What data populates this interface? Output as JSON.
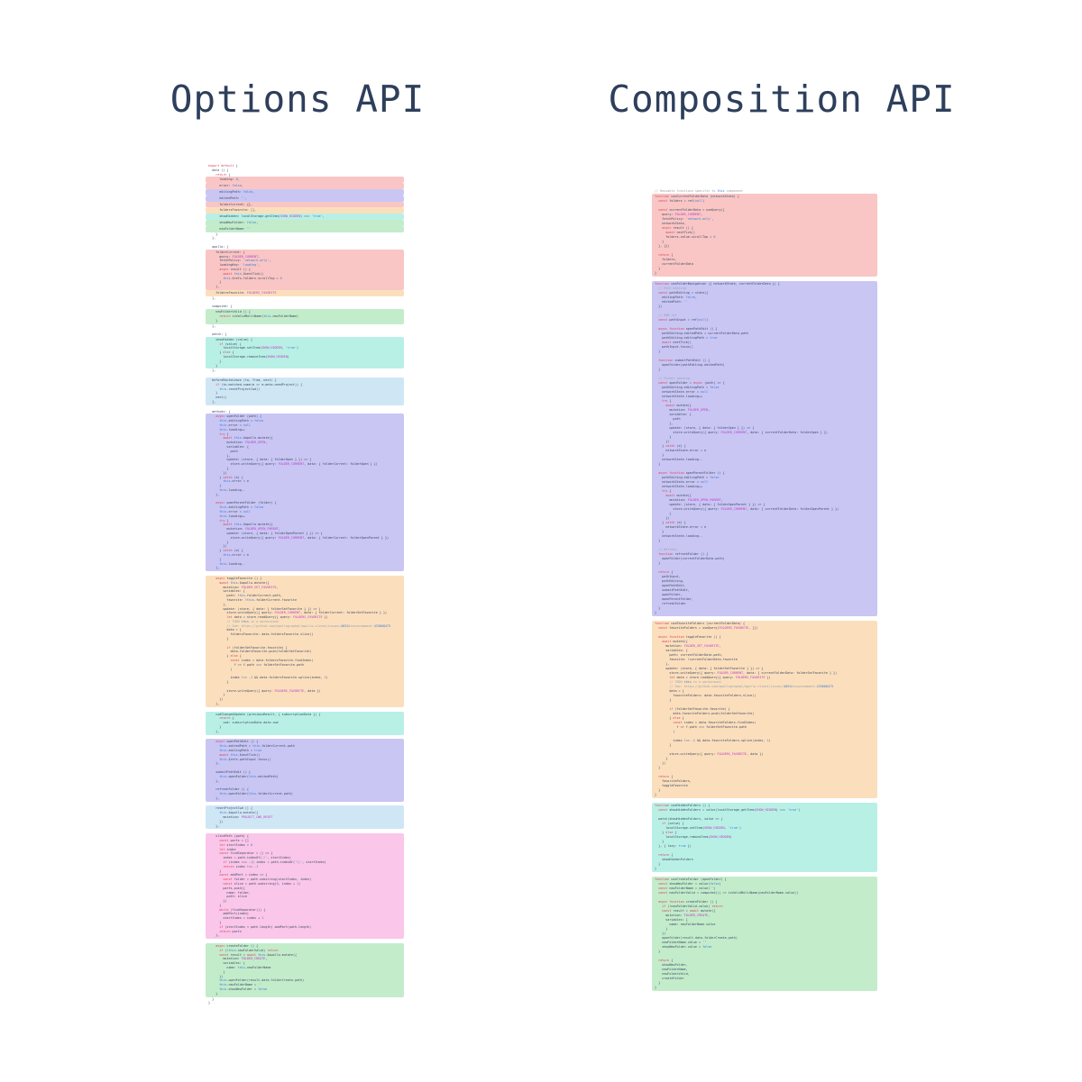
{
  "titles": {
    "left": "Options API",
    "right": "Composition API"
  },
  "palette": {
    "salmon": "#f9c6c5",
    "purple": "#c9c6f4",
    "orange": "#fbdfbd",
    "cyan": "#b9f0e6",
    "blue": "#cfe7f5",
    "pink": "#fac6e9",
    "green": "#c3eccb",
    "title_color": "#2e3f5c"
  },
  "columns": [
    {
      "id": "options",
      "segments": [
        {
          "bg": null,
          "code": "export default {\n  data () {\n    return {"
        },
        {
          "bg": "salmon",
          "code": "      loading: 0,"
        },
        {
          "bg": "salmon",
          "code": "      error: false,"
        },
        {
          "bg": "purple",
          "code": "      editingPath: false,"
        },
        {
          "bg": "purple",
          "code": "      editedPath: '',"
        },
        {
          "bg": "salmon",
          "code": "      folderCurrent: {},"
        },
        {
          "bg": "orange",
          "code": "      foldersFavorite: [],"
        },
        {
          "bg": "cyan",
          "code": "      showHidden: localStorage.getItem(SHOW_HIDDEN) === 'true',"
        },
        {
          "bg": "green",
          "code": "      showNewFolder: false,"
        },
        {
          "bg": "green",
          "code": "      newFolderName: ''"
        },
        {
          "bg": null,
          "code": "    }\n  },\n\n  apollo: {"
        },
        {
          "bg": "salmon",
          "code": "    folderCurrent: {\n      query: FOLDER_CURRENT,\n      fetchPolicy: 'network-only',\n      loadingKey: 'loading',\n      async result () {\n        await this.$nextTick()\n        this.$refs.folders.scrollTop = 0\n      }\n    },"
        },
        {
          "bg": "orange",
          "code": "    foldersFavorite: FOLDERS_FAVORITE"
        },
        {
          "bg": null,
          "code": "  },\n\n  computed: {"
        },
        {
          "bg": "green",
          "code": "    newFolderValid () {\n      return isValidMultiName(this.newFolderName)\n    }"
        },
        {
          "bg": null,
          "code": "  },\n\n  watch: {"
        },
        {
          "bg": "cyan",
          "code": "    showHidden (value) {\n      if (value) {\n        localStorage.setItem(SHOW_HIDDEN, 'true')\n      } else {\n        localStorage.removeItem(SHOW_HIDDEN)\n      }\n    }"
        },
        {
          "bg": null,
          "code": "  },"
        },
        {
          "bg": null,
          "code": " "
        },
        {
          "bg": "blue",
          "code": "  beforeRouteLeave (to, from, next) {\n    if (to.matched.some(m => m.meta.needProject)) {\n      this.resetProjectCwd()\n    }\n    next()\n  },"
        },
        {
          "bg": null,
          "code": "\n  methods: {"
        },
        {
          "bg": "purple",
          "code": "    async openFolder (path) {\n      this.editingPath = false\n      this.error = null\n      this.loading++\n      try {\n        await this.$apollo.mutate({\n          mutation: FOLDER_OPEN,\n          variables: {\n            path\n          },\n          update: (store, { data: { folderOpen } }) => {\n            store.writeQuery({ query: FOLDER_CURRENT, data: { folderCurrent: folderOpen } })\n          }\n        })\n      } catch (e) {\n        this.error = e\n      }\n      this.loading--\n    },\n\n    async openParentFolder (folder) {\n      this.editingPath = false\n      this.error = null\n      this.loading++\n      try {\n        await this.$apollo.mutate({\n          mutation: FOLDER_OPEN_PARENT,\n          update: (store, { data: { folderOpenParent } }) => {\n            store.writeQuery({ query: FOLDER_CURRENT, data: { folderCurrent: folderOpenParent } })\n          }\n        })\n      } catch (e) {\n        this.error = e\n      }\n      this.loading--\n    },"
        },
        {
          "bg": null,
          "code": " "
        },
        {
          "bg": "orange",
          "code": "    async toggleFavorite () {\n      await this.$apollo.mutate({\n        mutation: FOLDER_SET_FAVORITE,\n        variables: {\n          path: this.folderCurrent.path,\n          favorite: !this.folderCurrent.favorite\n        },\n        update: (store, { data: { folderSetFavorite } }) => {\n          store.writeQuery({ query: FOLDER_CURRENT, data: { folderCurrent: folderSetFavorite } })\n          let data = store.readQuery({ query: FOLDERS_FAVORITE })\n          // TODO this is a workaround\n          // See: https://github.com/apollographql/apollo-client/issues/4031#issuecomment-433668473\n          data = {\n            foldersFavorite: data.foldersFavorite.slice()\n          }\n\n          if (folderSetFavorite.favorite) {\n            data.foldersFavorite.push(folderSetFavorite)\n          } else {\n            const index = data.foldersFavorite.findIndex(\n              f => f.path === folderSetFavorite.path\n            )\n\n            index !== -1 && data.foldersFavorite.splice(index, 1)\n          }\n\n          store.writeQuery({ query: FOLDERS_FAVORITE, data })\n        }\n      })\n    },"
        },
        {
          "bg": null,
          "code": " "
        },
        {
          "bg": "cyan",
          "code": "    cwdChangedUpdate (previousResult, { subscriptionData }) {\n      return {\n        cwd: subscriptionData.data.cwd\n      }\n    },"
        },
        {
          "bg": null,
          "code": " "
        },
        {
          "bg": "purple",
          "code": "    async openPathEdit () {\n      this.editedPath = this.folderCurrent.path\n      this.editingPath = true\n      await this.$nextTick()\n      this.$refs.pathInput.focus()\n    },\n\n    submitPathEdit () {\n      this.openFolder(this.editedPath)\n    },\n\n    refreshFolder () {\n      this.openFolder(this.folderCurrent.path)\n    },"
        },
        {
          "bg": null,
          "code": " "
        },
        {
          "bg": "blue",
          "code": "    resetProjectCwd () {\n      this.$apollo.mutate({\n        mutation: PROJECT_CWD_RESET\n      })\n    },"
        },
        {
          "bg": null,
          "code": " "
        },
        {
          "bg": "pink",
          "code": "    slicePath (path) {\n      const parts = []\n      let startIndex = 0\n      let index\n      const findSeparator = () => {\n        index = path.indexOf('/', startIndex)\n        if (index === -1) index = path.indexOf('\\\\', startIndex)\n        return index !== -1\n      }\n      const addPart = index => {\n        const folder = path.substring(startIndex, index)\n        const slice = path.substring(0, index + 1)\n        parts.push({\n          name: folder,\n          path: slice\n        })\n      }\n      while (findSeparator()) {\n        addPart(index)\n        startIndex = index + 1\n      }\n      if (startIndex < path.length) addPart(path.length)\n      return parts\n    },"
        },
        {
          "bg": null,
          "code": " "
        },
        {
          "bg": "green",
          "code": "    async createFolder () {\n      if (!this.newFolderValid) return\n      const result = await this.$apollo.mutate({\n        mutation: FOLDER_CREATE,\n        variables: {\n          name: this.newFolderName\n        }\n      })\n      this.openFolder(result.data.folderCreate.path)\n      this.newFolderName = ''\n      this.showNewFolder = false\n    }"
        },
        {
          "bg": null,
          "code": "  }\n}"
        }
      ]
    },
    {
      "id": "composition",
      "segments": [
        {
          "bg": null,
          "code": "// Reusable functions specific to this component"
        },
        {
          "bg": "salmon",
          "code": "function useCurrentFolderData (networkState) {\n  const folders = ref(null)\n\n  const currentFolderData = useQuery({\n    query: FOLDER_CURRENT,\n    fetchPolicy: 'network-only',\n    networkState,\n    async result () {\n      await nextTick()\n      folders.value.scrollTop = 0\n    }\n  }, {})\n\n  return {\n    folders,\n    currentFolderData\n  }\n}"
        },
        {
          "bg": null,
          "code": " "
        },
        {
          "bg": "purple",
          "code": "function useFolderNavigation ({ networkState, currentFolderData }) {\n  // Path editing\n  const pathEditing = state({\n    editingPath: false,\n    editedPath: ''\n  })\n\n  // DOM ref\n  const pathInput = ref(null)\n\n  async function openPathEdit () {\n    pathEditing.editedPath = currentFolderData.path\n    pathEditing.editingPath = true\n    await nextTick()\n    pathInput.focus()\n  }\n\n  function submitPathEdit () {\n    openFolder(pathEditing.editedPath)\n  }\n\n  // Folder opening\n  const openFolder = async (path) => {\n    pathEditing.editingPath = false\n    networkState.error = null\n    networkState.loading++\n    try {\n      await mutate({\n        mutation: FOLDER_OPEN,\n        variables: {\n          path\n        },\n        update: (store, { data: { folderOpen } }) => {\n          store.writeQuery({ query: FOLDER_CURRENT, data: { currentFolderData: folderOpen } })\n        }\n      })\n    } catch (e) {\n      networkState.error = e\n    }\n    networkState.loading--\n  }\n\n  async function openParentFolder () {\n    pathEditing.editingPath = false\n    networkState.error = null\n    networkState.loading++\n    try {\n      await mutate({\n        mutation: FOLDER_OPEN_PARENT,\n        update: (store, { data: { folderOpenParent } }) => {\n          store.writeQuery({ query: FOLDER_CURRENT, data: { currentFolderData: folderOpenParent } })\n        }\n      })\n    } catch (e) {\n      networkState.error = e\n    }\n    networkState.loading--\n  }\n\n  // Refresh\n  function refreshFolder () {\n    openFolder(currentFolderData.path)\n  }\n\n  return {\n    pathInput,\n    pathEditing,\n    openPathEdit,\n    submitPathEdit,\n    openFolder,\n    openParentFolder,\n    refreshFolder\n  }\n}"
        },
        {
          "bg": null,
          "code": " "
        },
        {
          "bg": "orange",
          "code": "function useFavoriteFolders (currentFolderData) {\n  const favoriteFolders = useQuery(FOLDERS_FAVORITE, [])\n\n  async function toggleFavorite () {\n    await mutate({\n      mutation: FOLDER_SET_FAVORITE,\n      variables: {\n        path: currentFolderData.path,\n        favorite: !currentFolderData.favorite\n      },\n      update: (store, { data: { folderSetFavorite } }) => {\n        store.writeQuery({ query: FOLDER_CURRENT, data: { currentFolderData: folderSetFavorite } })\n        let data = store.readQuery({ query: FOLDERS_FAVORITE })\n        // TODO this is a workaround\n        // See: https://github.com/apollographql/apollo-client/issues/4031#issuecomment-433668473\n        data = {\n          favoriteFolders: data.favoriteFolders.slice()\n        }\n\n        if (folderSetFavorite.favorite) {\n          data.favoriteFolders.push(folderSetFavorite)\n        } else {\n          const index = data.favoriteFolders.findIndex(\n            f => f.path === folderSetFavorite.path\n          )\n\n          index !== -1 && data.favoriteFolders.splice(index, 1)\n        }\n\n        store.writeQuery({ query: FOLDERS_FAVORITE, data })\n      }\n    })\n  }\n\n  return {\n    favoriteFolders,\n    toggleFavorite\n  }\n}"
        },
        {
          "bg": null,
          "code": " "
        },
        {
          "bg": "cyan",
          "code": "function useHiddenFolders () {\n  const showHiddenFolders = value(localStorage.getItem(SHOW_HIDDEN) === 'true')\n\n  watch(showHiddenFolders, value => {\n    if (value) {\n      localStorage.setItem(SHOW_HIDDEN, 'true')\n    } else {\n      localStorage.removeItem(SHOW_HIDDEN)\n    }\n  }, { lazy: true })\n\n  return {\n    showHiddenFolders\n  }\n}"
        },
        {
          "bg": null,
          "code": " "
        },
        {
          "bg": "green",
          "code": "function useCreateFolder (openFolder) {\n  const showNewFolder = value(false)\n  const newFolderName = value('')\n  const newFolderValid = computed(() => isValidMultiName(newFolderName.value))\n\n  async function createFolder () {\n    if (!newFolderValid.value) return\n    const result = await mutate({\n      mutation: FOLDER_CREATE,\n      variables: {\n        name: newFolderName.value\n      }\n    })\n    openFolder(result.data.folderCreate.path)\n    newFolderName.value = ''\n    showNewFolder.value = false\n  }\n\n  return {\n    showNewFolder,\n    newFolderName,\n    newFolderValid,\n    createFolder\n  }\n}"
        }
      ]
    }
  ]
}
